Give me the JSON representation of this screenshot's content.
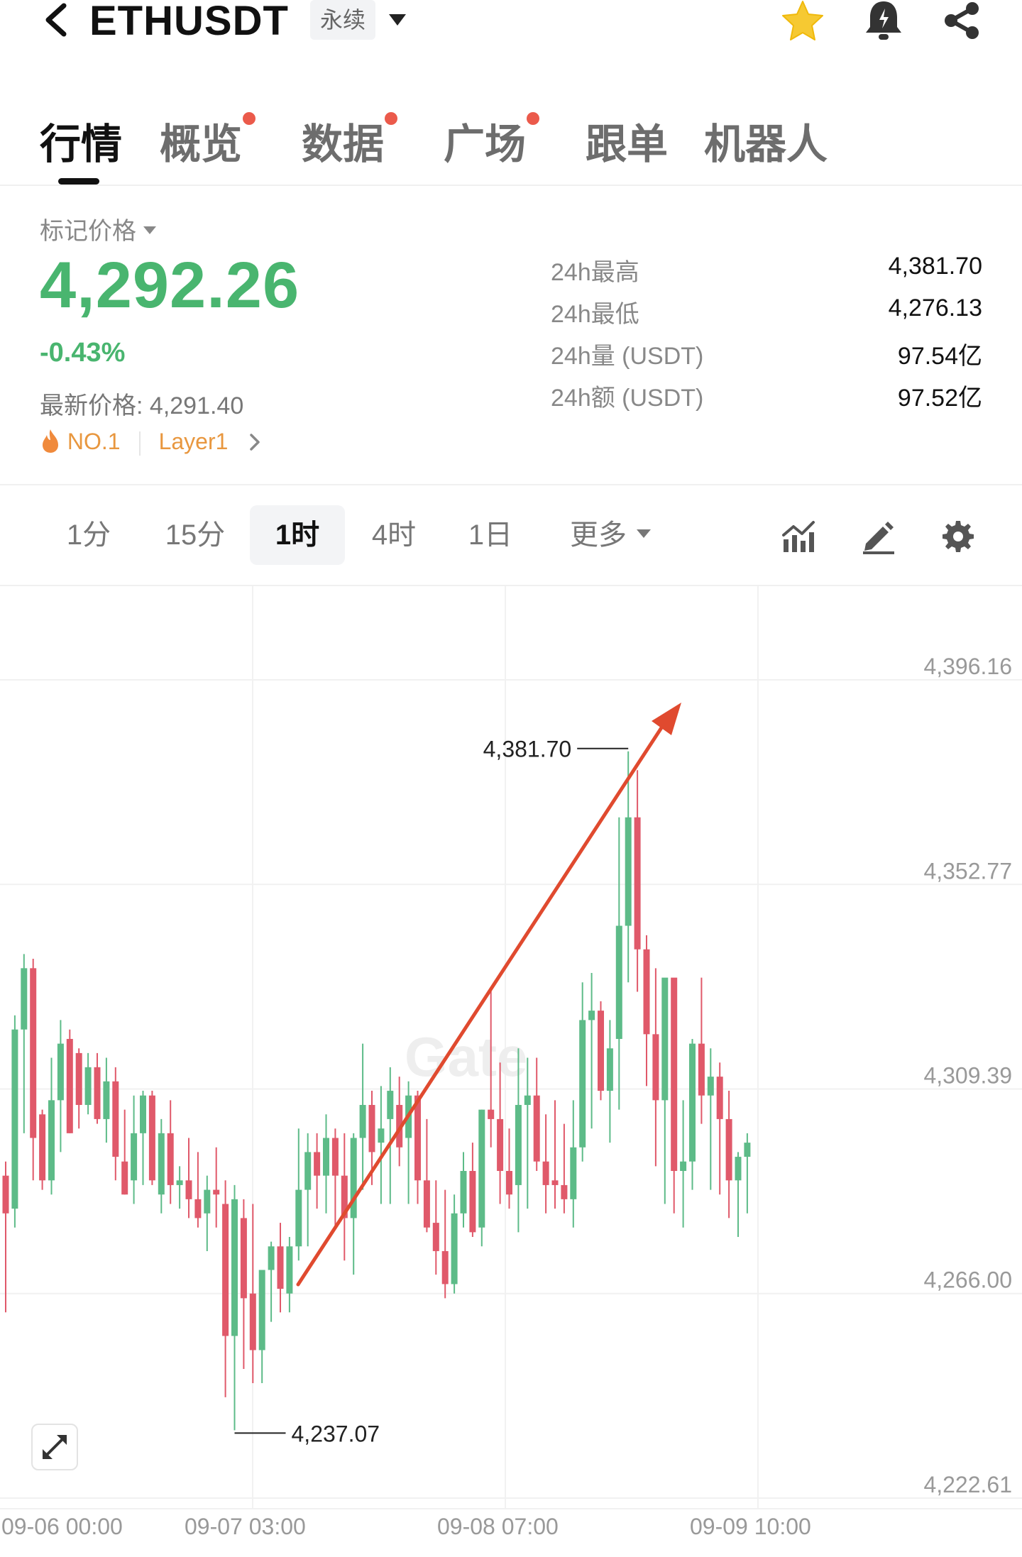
{
  "header": {
    "symbol": "ETHUSDT",
    "contract_type": "永续",
    "icons": [
      "back-icon",
      "chevron-down-icon",
      "star-icon",
      "bell-icon",
      "share-icon"
    ],
    "star_color": "#f6c932"
  },
  "tabs": [
    {
      "label": "行情",
      "active": true,
      "dot": false
    },
    {
      "label": "概览",
      "active": false,
      "dot": true
    },
    {
      "label": "数据",
      "active": false,
      "dot": true
    },
    {
      "label": "广场",
      "active": false,
      "dot": true
    },
    {
      "label": "跟单",
      "active": false,
      "dot": false
    },
    {
      "label": "机器人",
      "active": false,
      "dot": false
    }
  ],
  "price": {
    "mark_label": "标记价格",
    "mark_price": "4,292.26",
    "change_pct": "-0.43%",
    "last_price_label": "最新价格:",
    "last_price": "4,291.40",
    "tag_rank": "NO.1",
    "tag_sector": "Layer1",
    "price_color": "#49b56f",
    "tag_color": "#e8973f"
  },
  "stats": [
    {
      "label": "24h最高",
      "value": "4,381.70"
    },
    {
      "label": "24h最低",
      "value": "4,276.13"
    },
    {
      "label": "24h量 (USDT)",
      "value": "97.54亿"
    },
    {
      "label": "24h额 (USDT)",
      "value": "97.52亿"
    }
  ],
  "timeframes": {
    "items": [
      {
        "label": "1分",
        "active": false
      },
      {
        "label": "15分",
        "active": false
      },
      {
        "label": "1时",
        "active": true
      },
      {
        "label": "4时",
        "active": false
      },
      {
        "label": "1日",
        "active": false
      }
    ],
    "more_label": "更多",
    "tool_icons": [
      "indicator-icon",
      "pencil-icon",
      "gear-icon"
    ]
  },
  "chart_data": {
    "type": "candlestick",
    "watermark": "Gate",
    "y_ticks": [
      4396.16,
      4352.77,
      4309.39,
      4266.0,
      4222.61
    ],
    "y_tick_labels": [
      "4,396.16",
      "4,352.77",
      "4,309.39",
      "4,266.00",
      "4,222.61"
    ],
    "x_tick_labels": [
      "09-06 00:00",
      "09-07 03:00",
      "09-08 07:00",
      "09-09 10:00"
    ],
    "ylim": [
      4222.61,
      4396.16
    ],
    "grid": true,
    "up_color": "#5dbb88",
    "down_color": "#e0596a",
    "annotations": {
      "high_label": "4,381.70",
      "low_label": "4,237.07",
      "arrow_color": "#e04a2f"
    },
    "candles_ohlc": [
      [
        4291,
        4294,
        4262,
        4283
      ],
      [
        4284,
        4325,
        4280,
        4322
      ],
      [
        4322,
        4338,
        4300,
        4335
      ],
      [
        4335,
        4337,
        4290,
        4299
      ],
      [
        4304,
        4305,
        4288,
        4290
      ],
      [
        4290,
        4316,
        4287,
        4307
      ],
      [
        4307,
        4324,
        4296,
        4319
      ],
      [
        4320,
        4322,
        4300,
        4300
      ],
      [
        4317,
        4318,
        4301,
        4306
      ],
      [
        4306,
        4317,
        4304,
        4314
      ],
      [
        4314,
        4317,
        4302,
        4303
      ],
      [
        4303,
        4316,
        4298,
        4311
      ],
      [
        4311,
        4314,
        4290,
        4295
      ],
      [
        4294,
        4305,
        4287,
        4287
      ],
      [
        4290,
        4308,
        4285,
        4300
      ],
      [
        4300,
        4309,
        4289,
        4308
      ],
      [
        4308,
        4309,
        4289,
        4290
      ],
      [
        4287,
        4303,
        4283,
        4300
      ],
      [
        4300,
        4307,
        4285,
        4289
      ],
      [
        4289,
        4293,
        4284,
        4290
      ],
      [
        4290,
        4299,
        4282,
        4286
      ],
      [
        4286,
        4296,
        4280,
        4282
      ],
      [
        4283,
        4291,
        4275,
        4288
      ],
      [
        4288,
        4297,
        4280,
        4287
      ],
      [
        4285,
        4290,
        4244,
        4257
      ],
      [
        4257,
        4289,
        4237,
        4286
      ],
      [
        4282,
        4286,
        4250,
        4265
      ],
      [
        4266,
        4285,
        4247,
        4254
      ],
      [
        4254,
        4270,
        4247,
        4271
      ],
      [
        4271,
        4277,
        4260,
        4276
      ],
      [
        4276,
        4281,
        4262,
        4267
      ],
      [
        4266,
        4278,
        4262,
        4276
      ],
      [
        4276,
        4301,
        4273,
        4288
      ],
      [
        4288,
        4300,
        4276,
        4296
      ],
      [
        4296,
        4300,
        4284,
        4291
      ],
      [
        4291,
        4304,
        4283,
        4299
      ],
      [
        4299,
        4301,
        4280,
        4291
      ],
      [
        4291,
        4300,
        4273,
        4282
      ],
      [
        4282,
        4300,
        4270,
        4299
      ],
      [
        4299,
        4319,
        4288,
        4306
      ],
      [
        4306,
        4309,
        4289,
        4296
      ],
      [
        4298,
        4310,
        4285,
        4301
      ],
      [
        4303,
        4314,
        4285,
        4309
      ],
      [
        4306,
        4312,
        4293,
        4297
      ],
      [
        4299,
        4311,
        4285,
        4308
      ],
      [
        4308,
        4309,
        4285,
        4290
      ],
      [
        4290,
        4303,
        4279,
        4280
      ],
      [
        4281,
        4290,
        4270,
        4275
      ],
      [
        4275,
        4288,
        4265,
        4268
      ],
      [
        4268,
        4287,
        4266,
        4283
      ],
      [
        4283,
        4296,
        4280,
        4292
      ],
      [
        4292,
        4298,
        4278,
        4279
      ],
      [
        4280,
        4305,
        4276,
        4305
      ],
      [
        4305,
        4331,
        4297,
        4303
      ],
      [
        4303,
        4315,
        4285,
        4292
      ],
      [
        4292,
        4301,
        4284,
        4287
      ],
      [
        4289,
        4318,
        4279,
        4306
      ],
      [
        4306,
        4316,
        4284,
        4308
      ],
      [
        4308,
        4316,
        4292,
        4294
      ],
      [
        4294,
        4304,
        4283,
        4289
      ],
      [
        4290,
        4307,
        4284,
        4289
      ],
      [
        4289,
        4302,
        4283,
        4286
      ],
      [
        4286,
        4307,
        4280,
        4297
      ],
      [
        4297,
        4332,
        4294,
        4324
      ],
      [
        4324,
        4334,
        4301,
        4326
      ],
      [
        4326,
        4328,
        4307,
        4309
      ],
      [
        4309,
        4324,
        4298,
        4318
      ],
      [
        4320,
        4367,
        4305,
        4344
      ],
      [
        4344,
        4381,
        4332,
        4367
      ],
      [
        4367,
        4377,
        4330,
        4339
      ],
      [
        4339,
        4342,
        4310,
        4321
      ],
      [
        4321,
        4335,
        4293,
        4307
      ],
      [
        4307,
        4332,
        4285,
        4333
      ],
      [
        4333,
        4331,
        4283,
        4292
      ],
      [
        4292,
        4307,
        4280,
        4294
      ],
      [
        4294,
        4320,
        4288,
        4319
      ],
      [
        4319,
        4333,
        4302,
        4308
      ],
      [
        4308,
        4318,
        4288,
        4312
      ],
      [
        4312,
        4315,
        4287,
        4303
      ],
      [
        4303,
        4309,
        4282,
        4290
      ],
      [
        4290,
        4296,
        4278,
        4295
      ],
      [
        4295,
        4300,
        4283,
        4298
      ]
    ]
  }
}
